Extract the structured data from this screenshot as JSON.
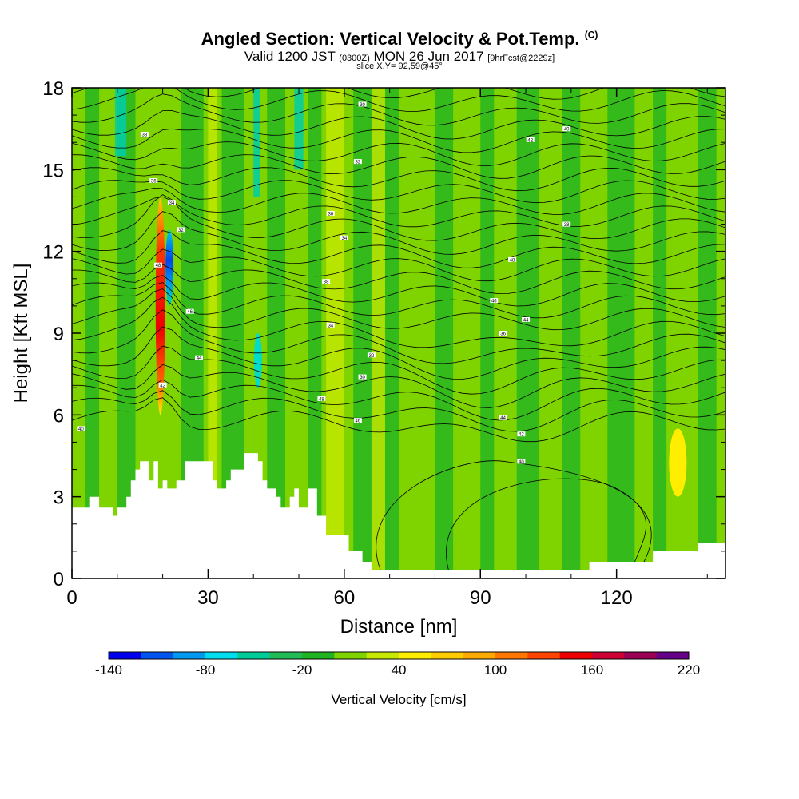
{
  "header": {
    "title": "Angled Section: Vertical Velocity & Pot.Temp.",
    "title_mark": "(C)",
    "valid_prefix": "Valid 1200 JST",
    "valid_zulu": "(0300Z)",
    "valid_date": "MON 26 Jun 2017",
    "forecast": "[9hrFcst@2229z]",
    "slice": "slice X,Y= 92,59@45°"
  },
  "chart_data": {
    "type": "heatmap",
    "xlabel": "Distance [nm]",
    "ylabel": "Height [Kft MSL]",
    "xlim": [
      0,
      144
    ],
    "ylim": [
      0,
      18
    ],
    "x_ticks": [
      0,
      30,
      60,
      90,
      120
    ],
    "y_ticks": [
      0,
      3,
      6,
      9,
      12,
      15,
      18
    ],
    "terrain_kft": [
      [
        0,
        2.6
      ],
      [
        4,
        2.6
      ],
      [
        4,
        3.0
      ],
      [
        6,
        3.0
      ],
      [
        6,
        2.6
      ],
      [
        9,
        2.6
      ],
      [
        9,
        2.3
      ],
      [
        10,
        2.3
      ],
      [
        10,
        2.6
      ],
      [
        12,
        2.6
      ],
      [
        12,
        3.0
      ],
      [
        13,
        3.0
      ],
      [
        13,
        3.6
      ],
      [
        14,
        3.6
      ],
      [
        14,
        4.0
      ],
      [
        15,
        4.0
      ],
      [
        15,
        4.3
      ],
      [
        17,
        4.3
      ],
      [
        17,
        3.6
      ],
      [
        18,
        3.6
      ],
      [
        18,
        4.3
      ],
      [
        19,
        4.3
      ],
      [
        19,
        3.3
      ],
      [
        20,
        3.3
      ],
      [
        20,
        3.6
      ],
      [
        21,
        3.6
      ],
      [
        21,
        3.3
      ],
      [
        23,
        3.3
      ],
      [
        23,
        3.6
      ],
      [
        25,
        3.6
      ],
      [
        25,
        4.3
      ],
      [
        31,
        4.3
      ],
      [
        31,
        3.6
      ],
      [
        32,
        3.6
      ],
      [
        32,
        3.3
      ],
      [
        34,
        3.3
      ],
      [
        34,
        3.6
      ],
      [
        35,
        3.6
      ],
      [
        35,
        4.0
      ],
      [
        38,
        4.0
      ],
      [
        38,
        4.6
      ],
      [
        41,
        4.6
      ],
      [
        41,
        4.3
      ],
      [
        42,
        4.3
      ],
      [
        42,
        3.6
      ],
      [
        43,
        3.6
      ],
      [
        43,
        3.3
      ],
      [
        45,
        3.3
      ],
      [
        45,
        3.0
      ],
      [
        46,
        3.0
      ],
      [
        46,
        2.6
      ],
      [
        48,
        2.6
      ],
      [
        48,
        3.0
      ],
      [
        49,
        3.0
      ],
      [
        49,
        3.3
      ],
      [
        50,
        3.3
      ],
      [
        50,
        2.6
      ],
      [
        52,
        2.6
      ],
      [
        52,
        3.3
      ],
      [
        54,
        3.3
      ],
      [
        54,
        2.3
      ],
      [
        56,
        2.3
      ],
      [
        56,
        1.6
      ],
      [
        61,
        1.6
      ],
      [
        61,
        1.0
      ],
      [
        64,
        1.0
      ],
      [
        64,
        0.6
      ],
      [
        66,
        0.6
      ],
      [
        66,
        0.3
      ],
      [
        114,
        0.3
      ],
      [
        114,
        0.6
      ],
      [
        128,
        0.6
      ],
      [
        128,
        1.0
      ],
      [
        138,
        1.0
      ],
      [
        138,
        1.3
      ],
      [
        144,
        1.3
      ]
    ],
    "theta_contour_labels": [
      "48",
      "46",
      "44",
      "42",
      "40",
      "38",
      "36",
      "34",
      "32",
      "30"
    ],
    "vertical_velocity_features": [
      {
        "x_nm": 19.5,
        "bottom_kft": 6.0,
        "top_kft": 14.0,
        "peak_cms": 170,
        "sign": "up"
      },
      {
        "x_nm": 21.5,
        "bottom_kft": 10.0,
        "top_kft": 12.8,
        "peak_cms": -140,
        "sign": "down"
      },
      {
        "x_nm": 41.0,
        "bottom_kft": 7.0,
        "top_kft": 9.0,
        "peak_cms": -80,
        "sign": "down"
      },
      {
        "x_nm": 133.5,
        "bottom_kft": 3.0,
        "top_kft": 5.5,
        "peak_cms": 50,
        "sign": "up"
      }
    ]
  },
  "colorbar": {
    "label": "Vertical Velocity [cm/s]",
    "ticks": [
      "-140",
      "-80",
      "-20",
      "40",
      "100",
      "160",
      "220"
    ],
    "colors": [
      "#0000ee",
      "#0055ee",
      "#0099ee",
      "#00ddee",
      "#00cc99",
      "#22bb55",
      "#22b322",
      "#7fd400",
      "#c7e800",
      "#ffee00",
      "#ffcc00",
      "#ffaa00",
      "#ff7700",
      "#ff4400",
      "#ee0000",
      "#cc0033",
      "#990055",
      "#660088"
    ]
  }
}
